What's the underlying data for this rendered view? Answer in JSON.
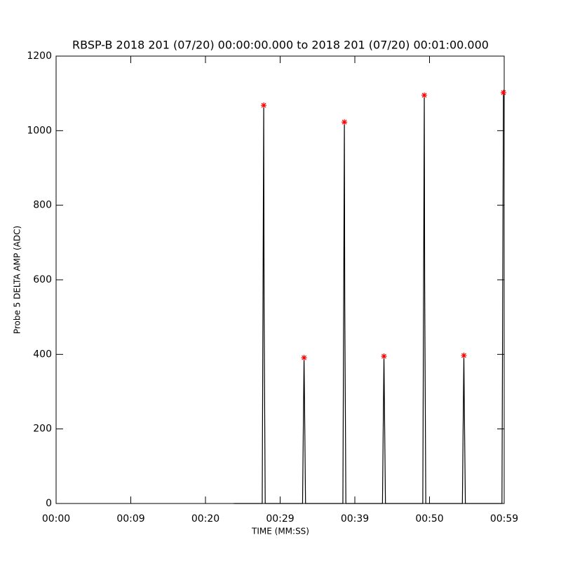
{
  "chart_data": {
    "type": "line",
    "title": "RBSP-B 2018 201 (07/20) 00:00:00.000 to 2018 201 (07/20) 00:01:00.000",
    "x_label": "TIME (MM:SS)",
    "y_label": "Probe 5 DELTA AMP (ADC)",
    "xlim": [
      0,
      60
    ],
    "ylim": [
      0,
      1200
    ],
    "xticks": [
      {
        "value": 0,
        "label": "00:00"
      },
      {
        "value": 10,
        "label": "00:09"
      },
      {
        "value": 20,
        "label": "00:20"
      },
      {
        "value": 30,
        "label": "00:29"
      },
      {
        "value": 40,
        "label": "00:39"
      },
      {
        "value": 50,
        "label": "00:50"
      },
      {
        "value": 60,
        "label": "00:59"
      }
    ],
    "yticks": [
      0,
      200,
      400,
      600,
      800,
      1000,
      1200
    ],
    "grid": false,
    "series": [
      {
        "mode": "lines",
        "color": "#000000",
        "x": [
          23.8,
          27.6,
          27.8,
          27.85,
          28.0,
          33.0,
          33.2,
          33.25,
          33.4,
          38.4,
          38.6,
          38.65,
          38.8,
          43.7,
          43.9,
          43.95,
          44.1,
          49.1,
          49.3,
          49.35,
          49.5,
          54.4,
          54.6,
          54.65,
          54.8,
          59.7,
          59.9
        ],
        "values": [
          0,
          0,
          1068,
          530,
          0,
          0,
          391,
          300,
          0,
          0,
          1023,
          545,
          0,
          0,
          395,
          290,
          0,
          0,
          1095,
          595,
          0,
          0,
          397,
          280,
          0,
          0,
          1102
        ]
      },
      {
        "mode": "markers",
        "color": "#ff0000",
        "x": [
          27.8,
          33.2,
          38.6,
          43.9,
          49.3,
          54.6,
          59.9
        ],
        "values": [
          1068,
          391,
          1023,
          395,
          1095,
          397,
          1102
        ]
      }
    ]
  }
}
